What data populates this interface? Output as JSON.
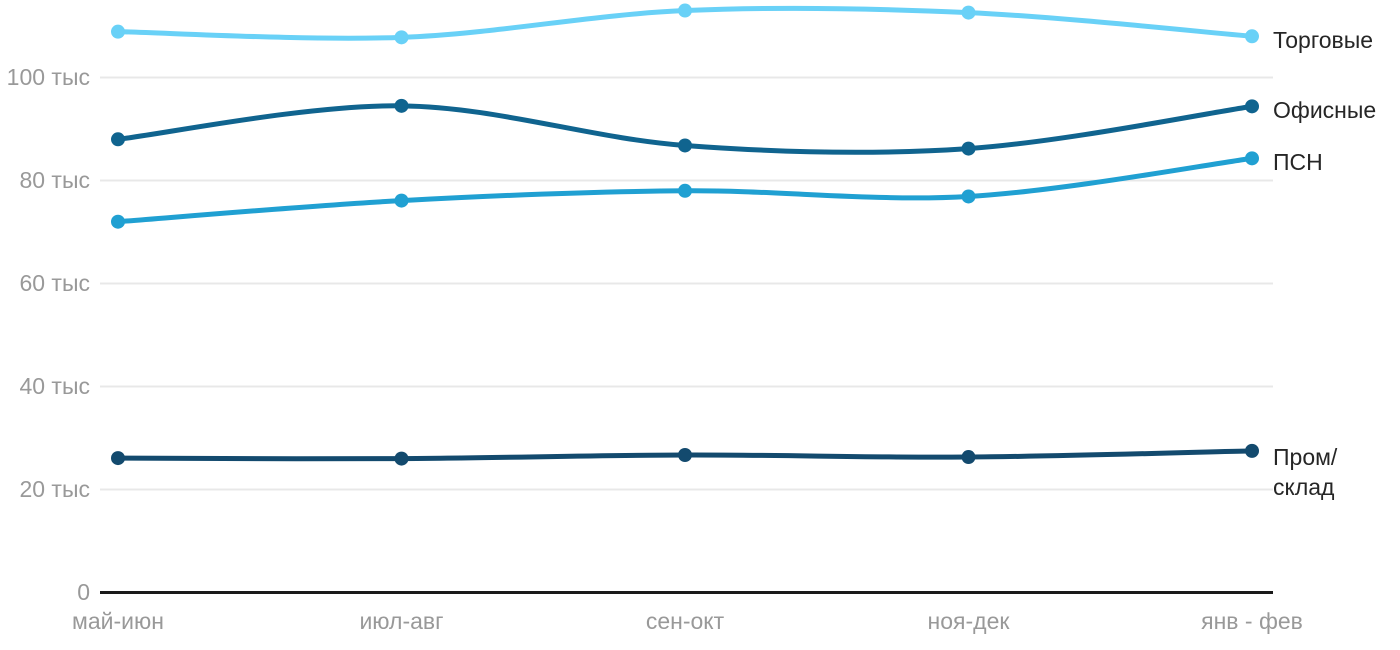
{
  "chart_data": {
    "type": "line",
    "title": "",
    "xlabel": "",
    "ylabel": "",
    "grid": true,
    "legend_position": "right-of-line-ends",
    "unit": "тыс",
    "ylim": [
      0,
      115
    ],
    "categories": [
      "май-июн",
      "июл-авг",
      "сен-окт",
      "ноя-дек",
      "янв - фев"
    ],
    "yticks": [
      {
        "value": 0,
        "label": "0"
      },
      {
        "value": 20,
        "label": "20 тыс"
      },
      {
        "value": 40,
        "label": "40 тыс"
      },
      {
        "value": 60,
        "label": "60 тыс"
      },
      {
        "value": 80,
        "label": "80 тыс"
      },
      {
        "value": 100,
        "label": "100 тыс"
      }
    ],
    "series": [
      {
        "name": "Торговые",
        "label_lines": [
          "Торговые"
        ],
        "color": "#69D1F7",
        "values": [
          108.9,
          107.8,
          113.0,
          112.6,
          108.0
        ]
      },
      {
        "name": "Офисные",
        "label_lines": [
          "Офисные"
        ],
        "color": "#10648F",
        "values": [
          88.0,
          94.5,
          86.8,
          86.2,
          94.4
        ]
      },
      {
        "name": "ПСН",
        "label_lines": [
          "ПСН"
        ],
        "color": "#20A0D2",
        "values": [
          72.0,
          76.1,
          78.0,
          76.9,
          84.3
        ]
      },
      {
        "name": "Пром/склад",
        "label_lines": [
          "Пром/",
          "склад"
        ],
        "color": "#134A6E",
        "values": [
          26.1,
          26.0,
          26.7,
          26.3,
          27.5
        ]
      }
    ]
  },
  "colors": {
    "background": "#FFFFFF",
    "grid_line": "#E8E8E8",
    "axis_line": "#1A1A1A",
    "tick_text": "#999999",
    "series_label_text": "#262626"
  }
}
